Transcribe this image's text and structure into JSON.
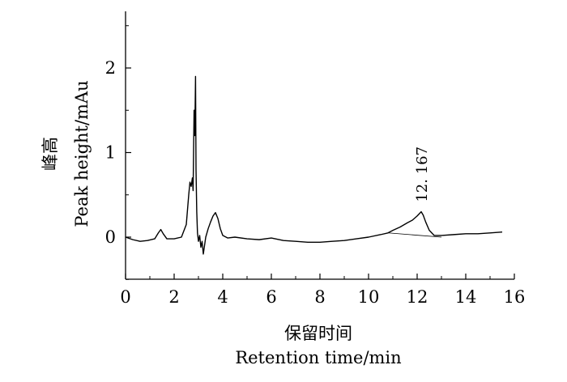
{
  "chart_data": {
    "type": "line",
    "xlabel_cn": "保留时间",
    "xlabel": "Retention time/min",
    "ylabel_cn": "峰高",
    "ylabel": "Peak height/mAu",
    "xlim": [
      0,
      16
    ],
    "ylim": [
      -0.5,
      2.6
    ],
    "xticks": [
      "0",
      "2",
      "4",
      "6",
      "8",
      "10",
      "12",
      "14",
      "16"
    ],
    "yticks": [
      "0",
      "1",
      "2"
    ],
    "grid": false,
    "annotations": [
      {
        "text": "12. 167",
        "x": 12.167,
        "y": 0.3,
        "rotation": -90
      }
    ],
    "series": [
      {
        "x": [
          0,
          0.3,
          0.6,
          0.9,
          1.2,
          1.35,
          1.45,
          1.55,
          1.7,
          2.0,
          2.3,
          2.5,
          2.6,
          2.65,
          2.7,
          2.75,
          2.78,
          2.82,
          2.85,
          2.88,
          2.9,
          2.93,
          2.96,
          3.0,
          3.05,
          3.1,
          3.15,
          3.2,
          3.25,
          3.3,
          3.4,
          3.5,
          3.6,
          3.7,
          3.8,
          3.9,
          4.0,
          4.2,
          4.5,
          5.0,
          5.5,
          6.0,
          6.5,
          7.0,
          7.5,
          8.0,
          8.5,
          9.0,
          9.5,
          10.0,
          10.5,
          10.8,
          11.0,
          11.3,
          11.6,
          11.8,
          12.0,
          12.1,
          12.167,
          12.25,
          12.35,
          12.5,
          12.7,
          13.0,
          13.5,
          14.0,
          14.5,
          15.0,
          15.5
        ],
        "y": [
          0.0,
          -0.03,
          -0.05,
          -0.04,
          -0.02,
          0.05,
          0.09,
          0.04,
          -0.02,
          -0.02,
          0.0,
          0.15,
          0.5,
          0.65,
          0.6,
          0.7,
          0.55,
          1.5,
          1.2,
          1.9,
          0.8,
          0.3,
          0.05,
          -0.05,
          0.02,
          -0.12,
          -0.05,
          -0.2,
          -0.1,
          0.0,
          0.1,
          0.18,
          0.25,
          0.29,
          0.22,
          0.1,
          0.02,
          -0.01,
          0.0,
          -0.02,
          -0.03,
          -0.01,
          -0.04,
          -0.05,
          -0.06,
          -0.06,
          -0.05,
          -0.04,
          -0.02,
          0.0,
          0.03,
          0.05,
          0.08,
          0.12,
          0.17,
          0.2,
          0.25,
          0.28,
          0.3,
          0.26,
          0.18,
          0.08,
          0.02,
          0.02,
          0.03,
          0.04,
          0.04,
          0.05,
          0.06
        ]
      }
    ],
    "baseline": {
      "x": [
        10.8,
        13.0
      ],
      "y": [
        0.05,
        0.0
      ]
    }
  }
}
